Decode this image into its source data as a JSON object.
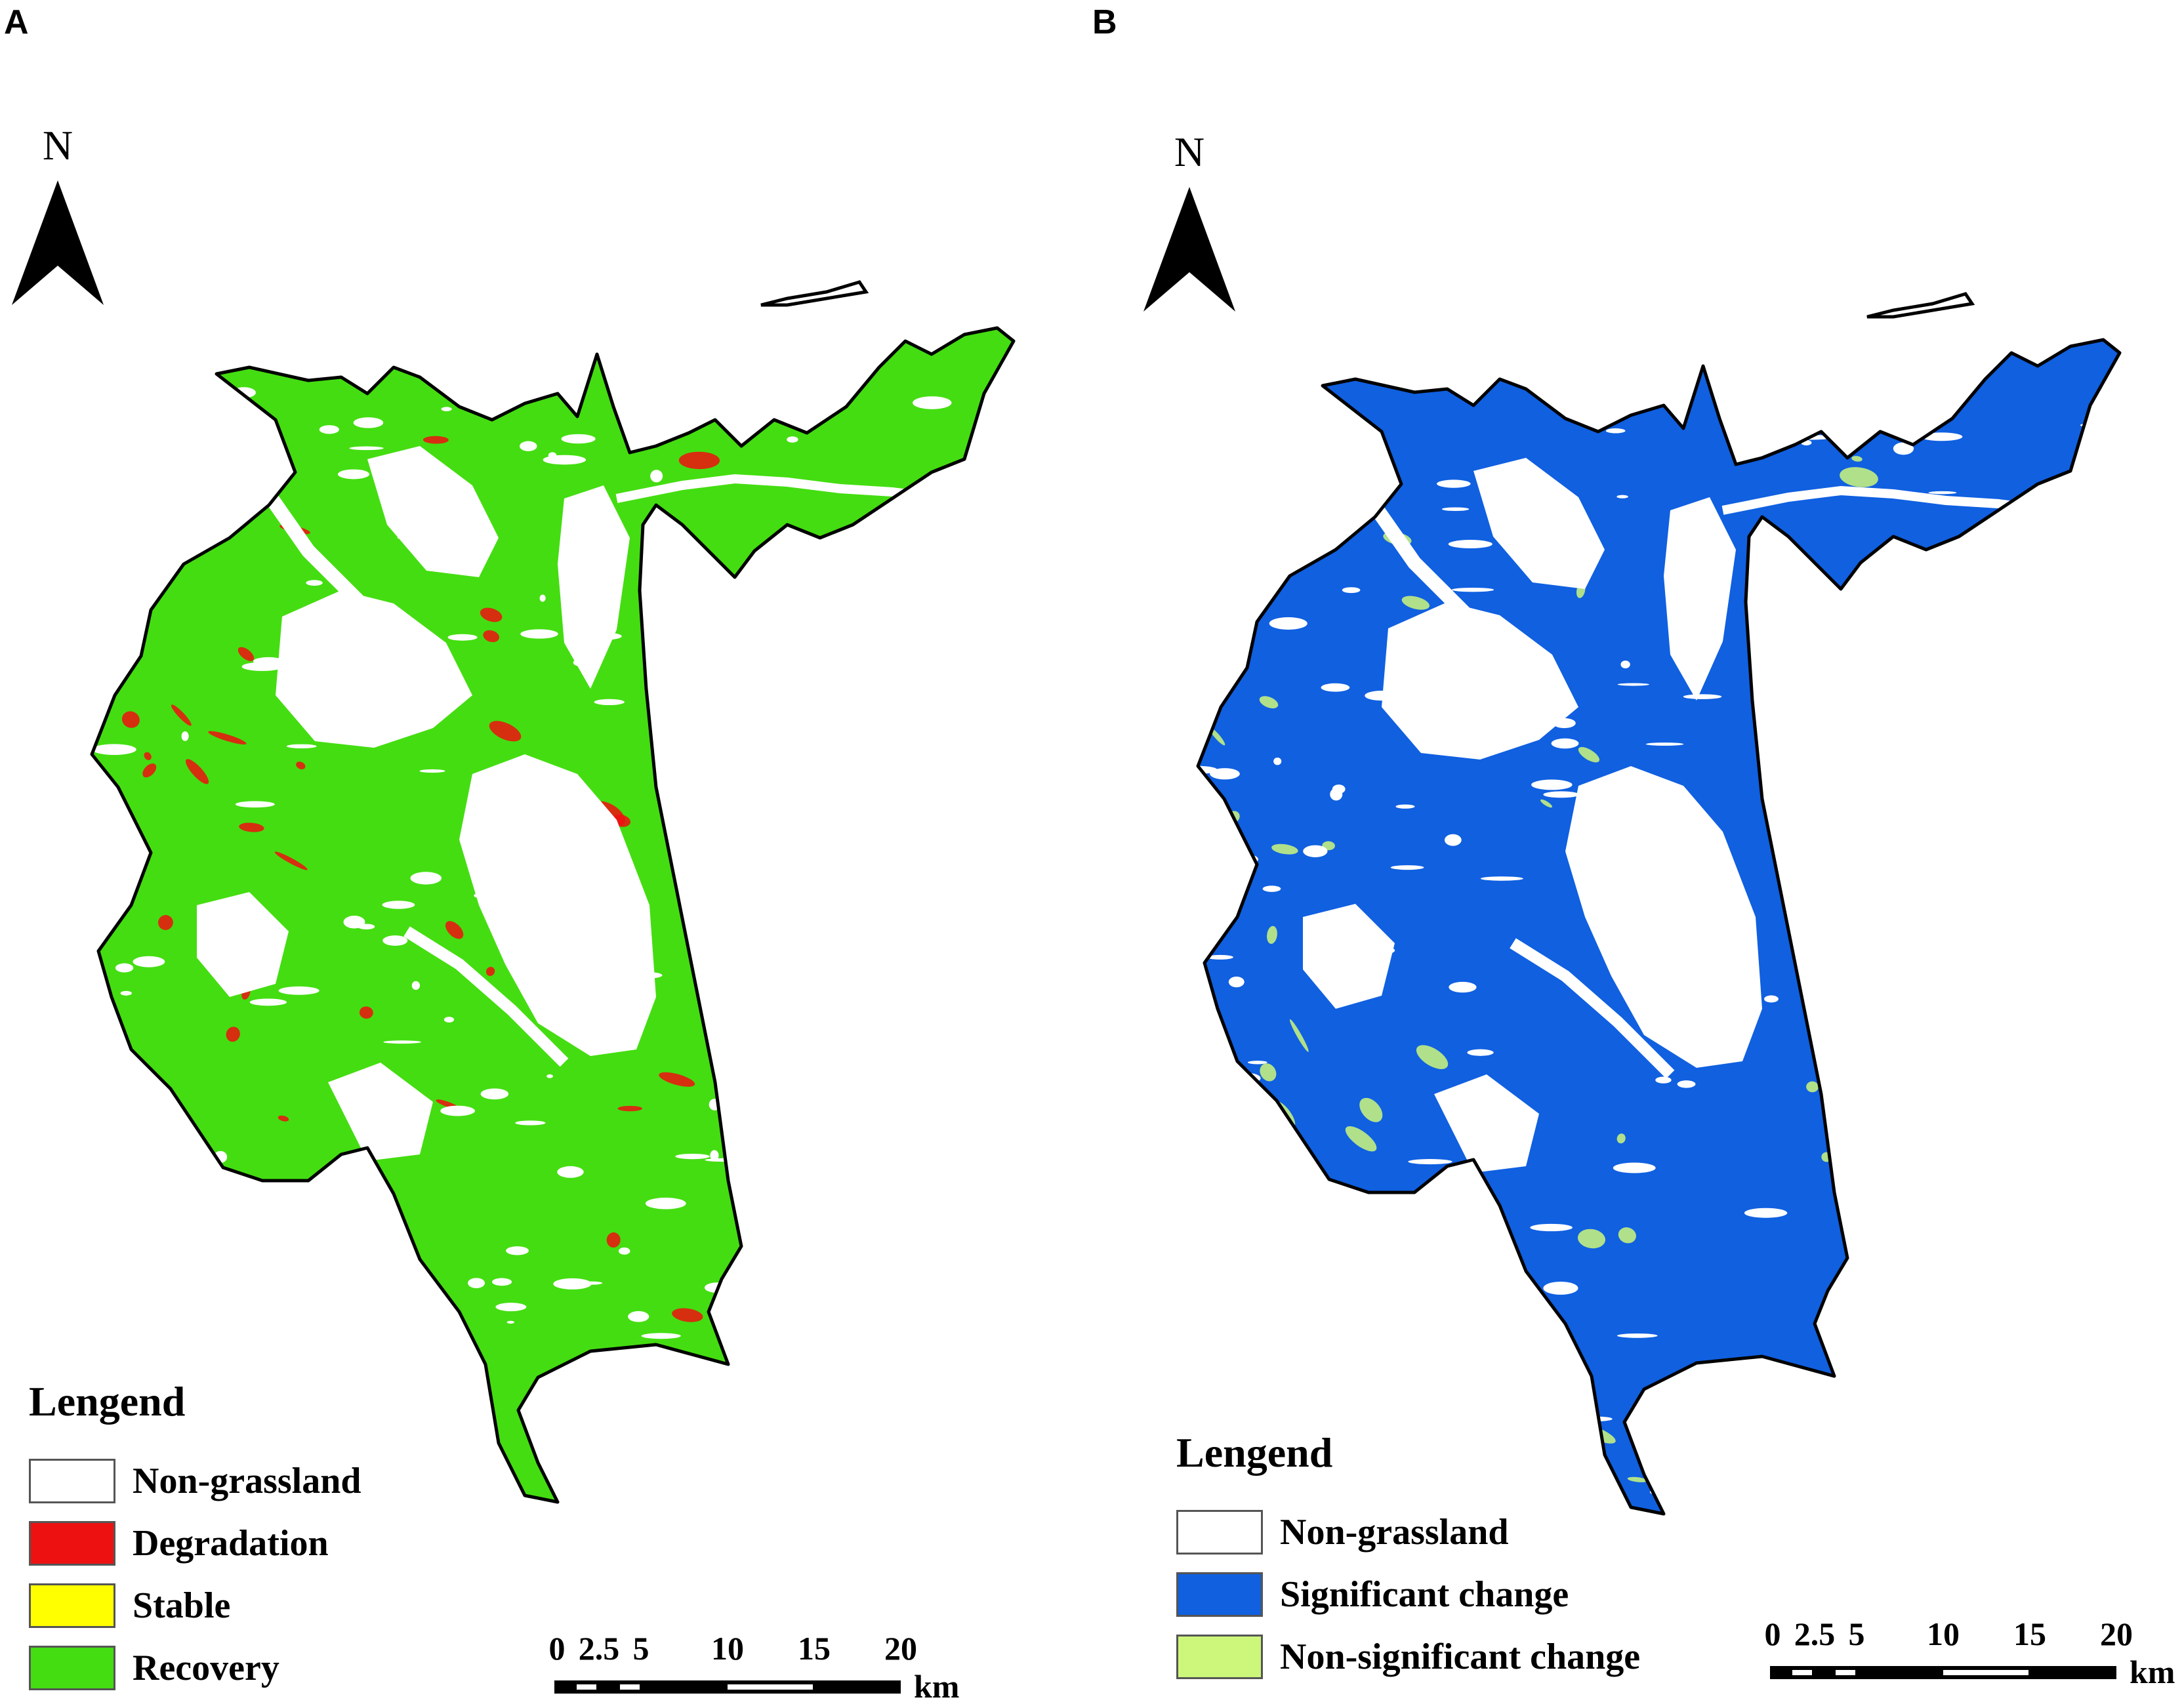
{
  "panel_a": {
    "letter": "A",
    "north_label": "N",
    "legend": {
      "title": "Lengend",
      "items": [
        {
          "label": "Non-grassland",
          "color": "#ffffff"
        },
        {
          "label": "Degradation",
          "color": "#ee1111"
        },
        {
          "label": "Stable",
          "color": "#ffff00"
        },
        {
          "label": "Recovery",
          "color": "#44dd11"
        }
      ]
    },
    "scale": {
      "ticks": [
        "0",
        "2.5",
        "5",
        "10",
        "15",
        "20"
      ],
      "unit": "km"
    },
    "colors": {
      "primary": "#44dd11",
      "secondary": "#ee1111",
      "outline": "#000000"
    }
  },
  "panel_b": {
    "letter": "B",
    "north_label": "N",
    "legend": {
      "title": "Lengend",
      "items": [
        {
          "label": "Non-grassland",
          "color": "#ffffff"
        },
        {
          "label": "Significant change",
          "color": "#1060e0"
        },
        {
          "label": "Non-significant change",
          "color": "#ccf77a"
        }
      ]
    },
    "scale": {
      "ticks": [
        "0",
        "2.5",
        "5",
        "10",
        "15",
        "20"
      ],
      "unit": "km"
    },
    "colors": {
      "primary": "#1060e0",
      "secondary": "#ccf77a",
      "outline": "#000000"
    }
  }
}
